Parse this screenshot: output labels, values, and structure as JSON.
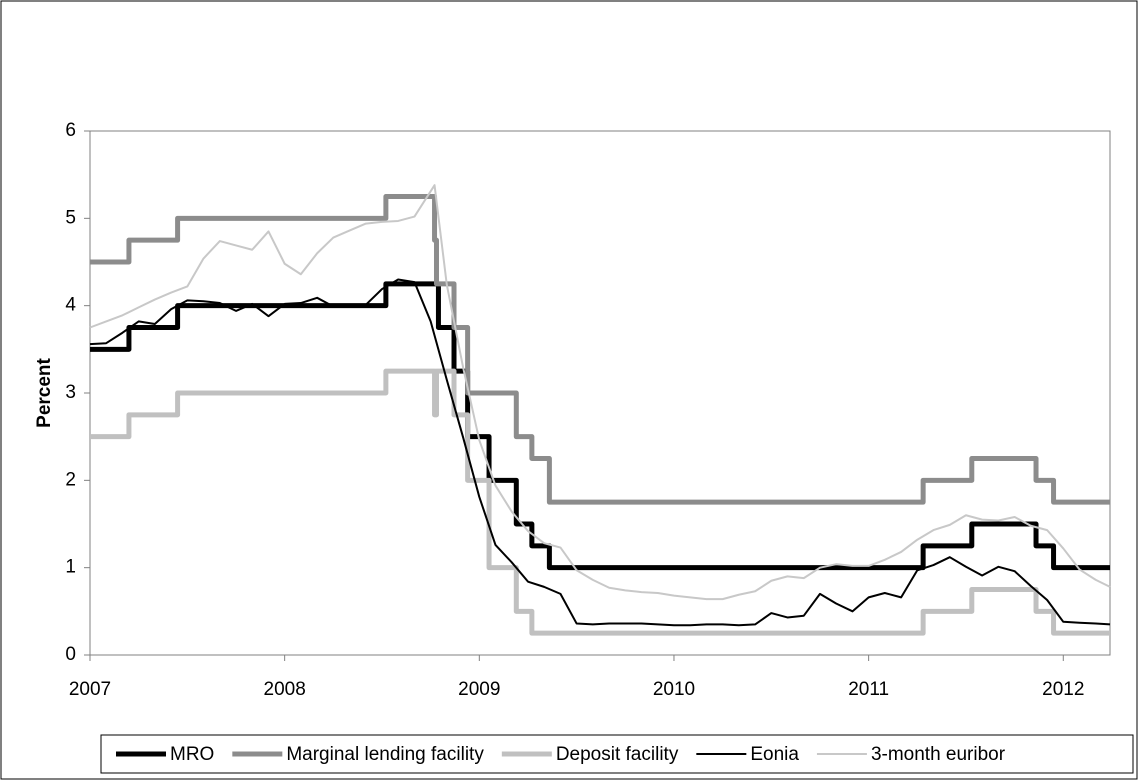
{
  "chart_data": {
    "type": "line",
    "y_label": "Percent",
    "xlim": [
      2007,
      2012.24
    ],
    "ylim": [
      0,
      6
    ],
    "xticks": [
      2007,
      2008,
      2009,
      2010,
      2011,
      2012
    ],
    "yticks": [
      0,
      1,
      2,
      3,
      4,
      5,
      6
    ],
    "legend": "bottom",
    "series": [
      {
        "name": "MRO",
        "color": "#000000",
        "line_width": 5,
        "x": [
          2007,
          2007.2,
          2007.2,
          2007.45,
          2007.45,
          2008.52,
          2008.52,
          2008.79,
          2008.79,
          2008.87,
          2008.87,
          2008.94,
          2008.94,
          2009.05,
          2009.05,
          2009.19,
          2009.19,
          2009.27,
          2009.27,
          2009.36,
          2009.36,
          2011.28,
          2011.28,
          2011.53,
          2011.53,
          2011.86,
          2011.86,
          2011.95,
          2011.95,
          2012.24
        ],
        "values": [
          3.5,
          3.5,
          3.75,
          3.75,
          4,
          4,
          4.25,
          4.25,
          3.75,
          3.75,
          3.25,
          3.25,
          2.5,
          2.5,
          2,
          2,
          1.5,
          1.5,
          1.25,
          1.25,
          1,
          1,
          1.25,
          1.25,
          1.5,
          1.5,
          1.25,
          1.25,
          1,
          1
        ]
      },
      {
        "name": "Marginal lending facility",
        "color": "#8c8c8c",
        "line_width": 5,
        "x": [
          2007,
          2007.2,
          2007.2,
          2007.45,
          2007.45,
          2008.52,
          2008.52,
          2008.77,
          2008.77,
          2008.78,
          2008.78,
          2008.87,
          2008.87,
          2008.94,
          2008.94,
          2009.19,
          2009.19,
          2009.27,
          2009.27,
          2009.36,
          2009.36,
          2011.28,
          2011.28,
          2011.53,
          2011.53,
          2011.86,
          2011.86,
          2011.95,
          2011.95,
          2012.24
        ],
        "values": [
          4.5,
          4.5,
          4.75,
          4.75,
          5,
          5,
          5.25,
          5.25,
          4.75,
          4.75,
          4.25,
          4.25,
          3.75,
          3.75,
          3,
          3,
          2.5,
          2.5,
          2.25,
          2.25,
          1.75,
          1.75,
          2,
          2,
          2.25,
          2.25,
          2,
          2,
          1.75,
          1.75
        ]
      },
      {
        "name": "Deposit facility",
        "color": "#c0c0c0",
        "line_width": 5,
        "x": [
          2007,
          2007.2,
          2007.2,
          2007.45,
          2007.45,
          2008.52,
          2008.52,
          2008.77,
          2008.77,
          2008.78,
          2008.78,
          2008.87,
          2008.87,
          2008.94,
          2008.94,
          2009.05,
          2009.05,
          2009.19,
          2009.19,
          2009.27,
          2009.27,
          2011.28,
          2011.28,
          2011.53,
          2011.53,
          2011.86,
          2011.86,
          2011.95,
          2011.95,
          2012.24
        ],
        "values": [
          2.5,
          2.5,
          2.75,
          2.75,
          3,
          3,
          3.25,
          3.25,
          2.75,
          2.75,
          3.25,
          3.25,
          2.75,
          2.75,
          2,
          2,
          1,
          1,
          0.5,
          0.5,
          0.25,
          0.25,
          0.5,
          0.5,
          0.75,
          0.75,
          0.5,
          0.5,
          0.25,
          0.25
        ]
      },
      {
        "name": "Eonia",
        "color": "#000000",
        "line_width": 2,
        "x": [
          2007,
          2007.083,
          2007.167,
          2007.25,
          2007.333,
          2007.417,
          2007.5,
          2007.583,
          2007.667,
          2007.75,
          2007.833,
          2007.917,
          2008,
          2008.083,
          2008.167,
          2008.25,
          2008.333,
          2008.417,
          2008.5,
          2008.583,
          2008.667,
          2008.75,
          2008.833,
          2008.917,
          2009,
          2009.083,
          2009.167,
          2009.25,
          2009.333,
          2009.417,
          2009.5,
          2009.583,
          2009.667,
          2009.75,
          2009.833,
          2009.917,
          2010,
          2010.083,
          2010.167,
          2010.25,
          2010.333,
          2010.417,
          2010.5,
          2010.583,
          2010.667,
          2010.75,
          2010.833,
          2010.917,
          2011,
          2011.083,
          2011.167,
          2011.25,
          2011.333,
          2011.417,
          2011.5,
          2011.583,
          2011.667,
          2011.75,
          2011.833,
          2011.917,
          2012,
          2012.083,
          2012.167,
          2012.24
        ],
        "values": [
          3.56,
          3.57,
          3.69,
          3.82,
          3.79,
          3.96,
          4.06,
          4.05,
          4.03,
          3.94,
          4.02,
          3.88,
          4.02,
          4.03,
          4.09,
          3.99,
          4.01,
          4.01,
          4.19,
          4.3,
          4.27,
          3.82,
          3.15,
          2.49,
          1.81,
          1.26,
          1.06,
          0.84,
          0.78,
          0.7,
          0.36,
          0.35,
          0.36,
          0.36,
          0.36,
          0.35,
          0.34,
          0.34,
          0.35,
          0.35,
          0.34,
          0.35,
          0.48,
          0.43,
          0.45,
          0.7,
          0.59,
          0.5,
          0.66,
          0.71,
          0.66,
          0.97,
          1.03,
          1.12,
          1.01,
          0.91,
          1.01,
          0.96,
          0.79,
          0.63,
          0.38,
          0.37,
          0.36,
          0.35
        ]
      },
      {
        "name": "3-month euribor",
        "color": "#c8c8c8",
        "line_width": 2,
        "x": [
          2007,
          2007.083,
          2007.167,
          2007.25,
          2007.333,
          2007.417,
          2007.5,
          2007.583,
          2007.667,
          2007.75,
          2007.833,
          2007.917,
          2008,
          2008.083,
          2008.167,
          2008.25,
          2008.333,
          2008.417,
          2008.5,
          2008.583,
          2008.667,
          2008.77,
          2008.833,
          2008.917,
          2009,
          2009.083,
          2009.167,
          2009.25,
          2009.333,
          2009.417,
          2009.5,
          2009.583,
          2009.667,
          2009.75,
          2009.833,
          2009.917,
          2010,
          2010.083,
          2010.167,
          2010.25,
          2010.333,
          2010.417,
          2010.5,
          2010.583,
          2010.667,
          2010.75,
          2010.833,
          2010.917,
          2011,
          2011.083,
          2011.167,
          2011.25,
          2011.333,
          2011.417,
          2011.5,
          2011.583,
          2011.667,
          2011.75,
          2011.833,
          2011.917,
          2012,
          2012.083,
          2012.167,
          2012.24
        ],
        "values": [
          3.75,
          3.82,
          3.89,
          3.98,
          4.07,
          4.15,
          4.22,
          4.54,
          4.74,
          4.69,
          4.64,
          4.85,
          4.48,
          4.36,
          4.6,
          4.78,
          4.86,
          4.94,
          4.96,
          4.97,
          5.02,
          5.38,
          4.24,
          3.29,
          2.46,
          1.94,
          1.64,
          1.42,
          1.28,
          1.23,
          0.97,
          0.86,
          0.77,
          0.74,
          0.72,
          0.71,
          0.68,
          0.66,
          0.64,
          0.64,
          0.69,
          0.73,
          0.85,
          0.9,
          0.88,
          1,
          1.04,
          1.02,
          1.02,
          1.09,
          1.18,
          1.32,
          1.43,
          1.49,
          1.6,
          1.55,
          1.54,
          1.58,
          1.48,
          1.43,
          1.22,
          0.98,
          0.86,
          0.78
        ]
      }
    ]
  }
}
